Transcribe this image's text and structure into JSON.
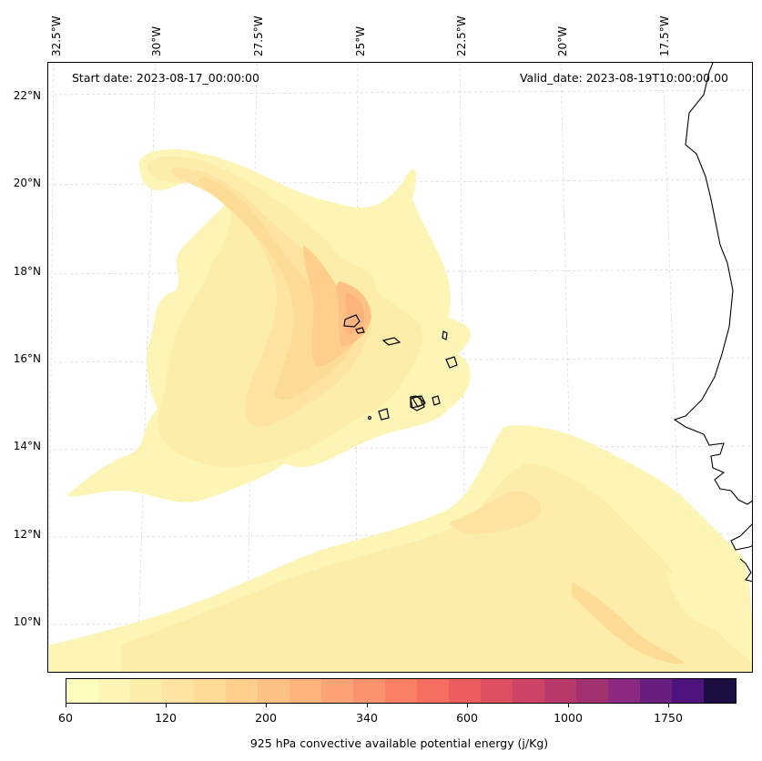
{
  "header": {
    "start_date": "Start date: 2023-08-17_00:00:00",
    "valid_date": "Valid_date: 2023-08-19T10:00:00.00"
  },
  "axes": {
    "lon_labels": [
      "32.5°W",
      "30°W",
      "27.5°W",
      "25°W",
      "22.5°W",
      "20°W",
      "17.5°W"
    ],
    "lat_labels": [
      "22°N",
      "20°N",
      "18°N",
      "16°N",
      "14°N",
      "12°N",
      "10°N"
    ]
  },
  "colorbar": {
    "label": "925 hPa convective available potential energy (j/Kg)",
    "ticks": [
      "60",
      "120",
      "200",
      "340",
      "600",
      "1000",
      "1750"
    ],
    "colors": [
      "#fcfdbf",
      "#fcf5b5",
      "#fdedab",
      "#fee4a0",
      "#fedc96",
      "#fecf8b",
      "#fec184",
      "#feb37d",
      "#fea375",
      "#fd926e",
      "#fb8166",
      "#f56e5f",
      "#ec5d60",
      "#df4f62",
      "#ce4466",
      "#b83a6b",
      "#a2316f",
      "#8c2981",
      "#6a1f80",
      "#4e137d"
    ],
    "dark_end": "#1b0c41"
  },
  "map": {
    "ocean_color": "#ffffff",
    "coast_color": "#000000",
    "grid": true
  }
}
